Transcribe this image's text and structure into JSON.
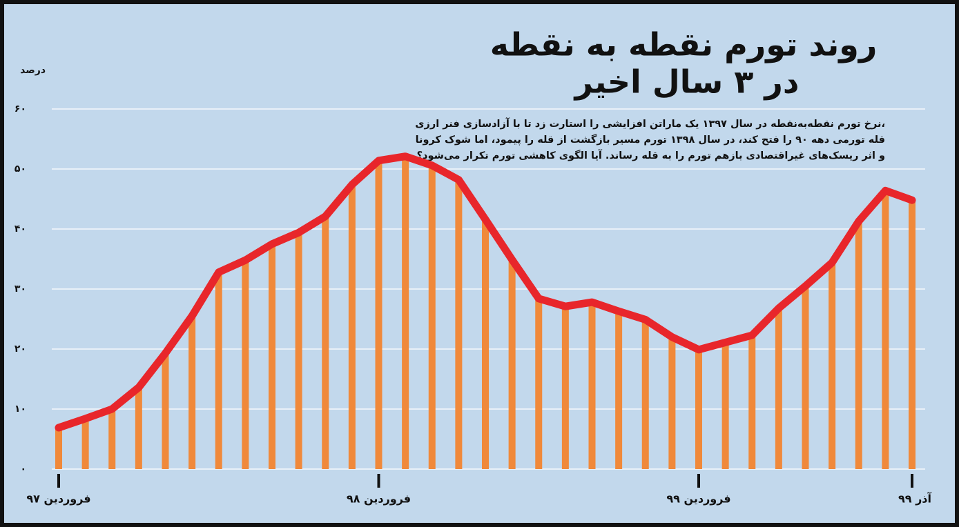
{
  "chart_data": {
    "type": "bar_line",
    "title_lines": [
      "روند تورم نقطه به نقطه",
      "در ۳ سال اخیر"
    ],
    "annotation_lines": [
      "نرخ تورم نقطه‌به‌نقطه در سال ۱۳۹۷ یک ماراتن افزایشی را استارت زد تا با آزادسازی فنر ارزی،",
      "قله تورمی دهه ۹۰ را فتح کند، در سال ۱۳۹۸ تورم مسیر بازگشت از قله را پیمود، اما شوک کرونا",
      "و اثر ریسک‌های غیراقتصادی بازهم تورم را به قله رساند. آیا الگوی کاهشی تورم تکرار می‌شود؟"
    ],
    "y_label": "درصد",
    "categories": [
      "فروردین ۹۷",
      null,
      null,
      null,
      null,
      null,
      null,
      null,
      null,
      null,
      null,
      null,
      "فروردین ۹۸",
      null,
      null,
      null,
      null,
      null,
      null,
      null,
      null,
      null,
      null,
      null,
      "فروردین ۹۹",
      null,
      null,
      null,
      null,
      null,
      null,
      null,
      "آذر ۹۹"
    ],
    "values": [
      6.9,
      8.4,
      10.0,
      13.6,
      19.3,
      25.5,
      32.8,
      34.8,
      37.5,
      39.4,
      42.1,
      47.4,
      51.4,
      52.1,
      50.6,
      48.2,
      41.6,
      34.9,
      28.4,
      27.1,
      27.8,
      26.3,
      24.9,
      22.0,
      19.9,
      21.1,
      22.3,
      26.8,
      30.5,
      34.4,
      41.3,
      46.4,
      44.8
    ],
    "bar_color": "#f0893a",
    "line_color": "#e8262b",
    "ylim": [
      0,
      60
    ],
    "yticks": [
      {
        "value": 0,
        "label": "۰"
      },
      {
        "value": 10,
        "label": "۱۰"
      },
      {
        "value": 20,
        "label": "۲۰"
      },
      {
        "value": 30,
        "label": "۳۰"
      },
      {
        "value": 40,
        "label": "۴۰"
      },
      {
        "value": 50,
        "label": "۵۰"
      },
      {
        "value": 60,
        "label": "۶۰"
      }
    ],
    "grid": true
  }
}
